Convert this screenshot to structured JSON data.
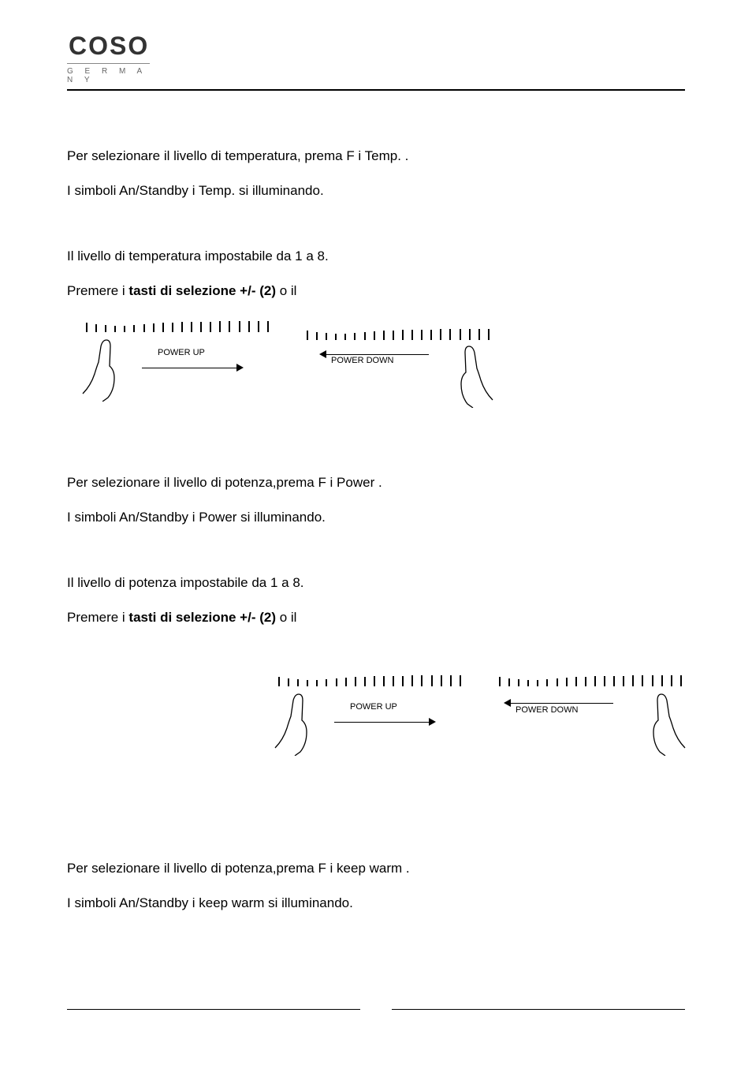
{
  "logo": {
    "word": "COSO",
    "sub": "G E R M A N Y"
  },
  "temp_section": {
    "line1": "Per selezionare il livello di temperatura, prema   F   i   Temp.  .",
    "line2": "I simboli   An/Standby   i   Temp.   si illuminando.",
    "line3": "Il livello di temperatura   impostabile da 1 a 8.",
    "line4_pre": "Premere i ",
    "line4_bold": "tasti di selezione +/- (2)",
    "line4_post": "  o il"
  },
  "power_section": {
    "line1": "Per selezionare il livello di potenza,prema   F   i   Power  .",
    "line2": "I simboli   An/Standby   i   Power   si illuminando.",
    "line3": "Il livello di potenza   impostabile da 1 a 8.",
    "line4_pre": "Premere i ",
    "line4_bold": "tasti di selezione +/- (2)",
    "line4_post": " o il"
  },
  "keepwarm_section": {
    "line1": "Per selezionare il livello di potenza,prema   F   i   keep warm  .",
    "line2": "I simboli   An/Standby   i   keep warm   si illuminando."
  },
  "labels": {
    "power_up": "POWER UP",
    "power_down": "POWER DOWN"
  },
  "slider_diagram": {
    "tick_heights": [
      12,
      10,
      9,
      8,
      8,
      9,
      10,
      11,
      12,
      12,
      13,
      13,
      13,
      13,
      14,
      14,
      14,
      14,
      14,
      14
    ],
    "colors": {
      "line": "#000000"
    }
  }
}
